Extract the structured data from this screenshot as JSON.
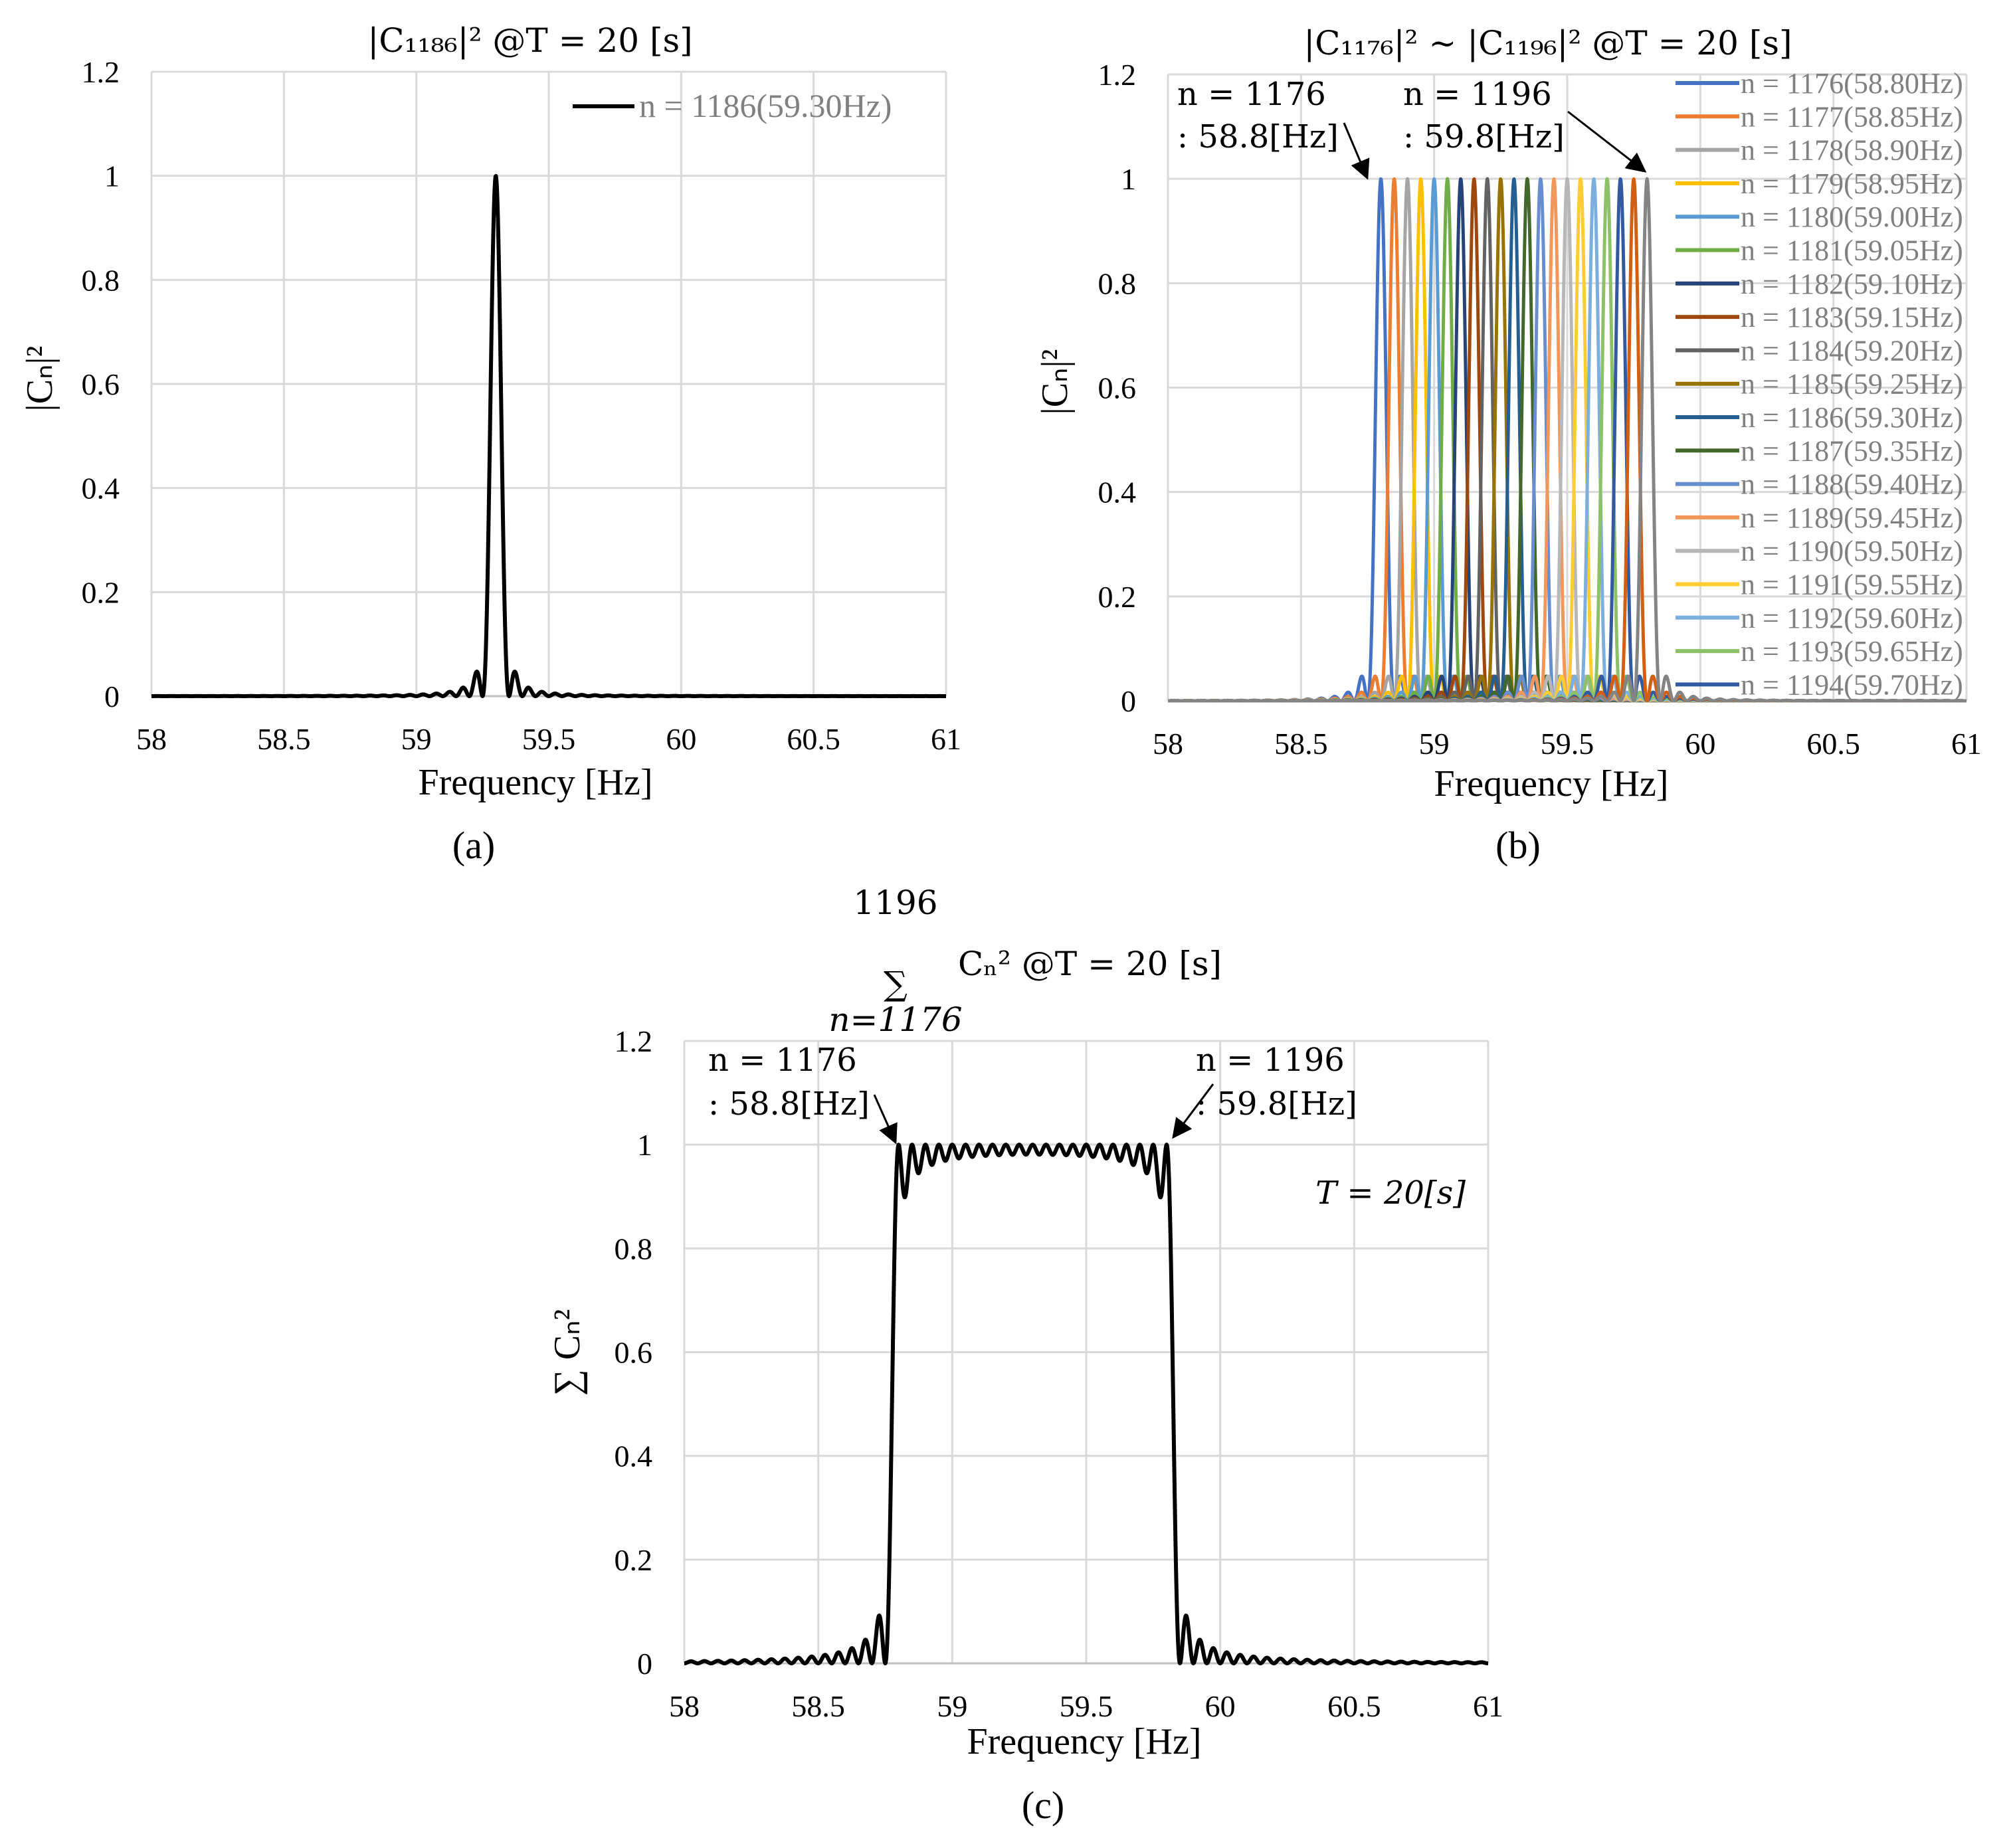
{
  "chart_data": [
    {
      "id": "a",
      "type": "line",
      "title": "|C₁₁₈₆|² @T = 20 [s]",
      "xlabel": "Frequency  [Hz]",
      "ylabel": "|Cₙ|²",
      "xlim": [
        58,
        61
      ],
      "ylim": [
        0,
        1.2
      ],
      "xticks": [
        "58",
        "58.5",
        "59",
        "59.5",
        "60",
        "60.5",
        "61"
      ],
      "yticks": [
        "0",
        "0.2",
        "0.4",
        "0.6",
        "0.8",
        "1",
        "1.2"
      ],
      "caption": "(a)",
      "series": [
        {
          "name": "n = 1186(59.30Hz)",
          "n": 1186,
          "center_hz": 59.3,
          "peak": 1.0,
          "color": "#000000"
        }
      ]
    },
    {
      "id": "b",
      "type": "line",
      "title": "|C₁₁₇₆|² ~ |C₁₁₉₆|² @T = 20 [s]",
      "xlabel": "Frequency  [Hz]",
      "ylabel": "|Cₙ|²",
      "xlim": [
        58,
        61
      ],
      "ylim": [
        0,
        1.2
      ],
      "xticks": [
        "58",
        "58.5",
        "59",
        "59.5",
        "60",
        "60.5",
        "61"
      ],
      "yticks": [
        "0",
        "0.2",
        "0.4",
        "0.6",
        "0.8",
        "1",
        "1.2"
      ],
      "caption": "(b)",
      "annotations": [
        {
          "line1": "n = 1176",
          "line2": ": 58.8[Hz]",
          "target_hz": 58.8,
          "target_y": 1.0
        },
        {
          "line1": "n = 1196",
          "line2": ": 59.8[Hz]",
          "target_hz": 59.8,
          "target_y": 1.0
        }
      ],
      "series": [
        {
          "name": "n = 1176(58.80Hz)",
          "center_hz": 58.8,
          "peak": 1.0,
          "color": "#4472c4"
        },
        {
          "name": "n = 1177(58.85Hz)",
          "center_hz": 58.85,
          "peak": 1.0,
          "color": "#ed7d31"
        },
        {
          "name": "n = 1178(58.90Hz)",
          "center_hz": 58.9,
          "peak": 1.0,
          "color": "#a5a5a5"
        },
        {
          "name": "n = 1179(58.95Hz)",
          "center_hz": 58.95,
          "peak": 1.0,
          "color": "#ffc000"
        },
        {
          "name": "n = 1180(59.00Hz)",
          "center_hz": 59.0,
          "peak": 1.0,
          "color": "#5b9bd5"
        },
        {
          "name": "n = 1181(59.05Hz)",
          "center_hz": 59.05,
          "peak": 1.0,
          "color": "#70ad47"
        },
        {
          "name": "n = 1182(59.10Hz)",
          "center_hz": 59.1,
          "peak": 1.0,
          "color": "#264478"
        },
        {
          "name": "n = 1183(59.15Hz)",
          "center_hz": 59.15,
          "peak": 1.0,
          "color": "#9e480e"
        },
        {
          "name": "n = 1184(59.20Hz)",
          "center_hz": 59.2,
          "peak": 1.0,
          "color": "#636363"
        },
        {
          "name": "n = 1185(59.25Hz)",
          "center_hz": 59.25,
          "peak": 1.0,
          "color": "#997300"
        },
        {
          "name": "n = 1186(59.30Hz)",
          "center_hz": 59.3,
          "peak": 1.0,
          "color": "#255e91"
        },
        {
          "name": "n = 1187(59.35Hz)",
          "center_hz": 59.35,
          "peak": 1.0,
          "color": "#43682b"
        },
        {
          "name": "n = 1188(59.40Hz)",
          "center_hz": 59.4,
          "peak": 1.0,
          "color": "#698ed0"
        },
        {
          "name": "n = 1189(59.45Hz)",
          "center_hz": 59.45,
          "peak": 1.0,
          "color": "#f1975a"
        },
        {
          "name": "n = 1190(59.50Hz)",
          "center_hz": 59.5,
          "peak": 1.0,
          "color": "#b7b7b7"
        },
        {
          "name": "n = 1191(59.55Hz)",
          "center_hz": 59.55,
          "peak": 1.0,
          "color": "#ffcd33"
        },
        {
          "name": "n = 1192(59.60Hz)",
          "center_hz": 59.6,
          "peak": 1.0,
          "color": "#7cafdd"
        },
        {
          "name": "n = 1193(59.65Hz)",
          "center_hz": 59.65,
          "peak": 1.0,
          "color": "#8cc168"
        },
        {
          "name": "n = 1194(59.70Hz)",
          "center_hz": 59.7,
          "peak": 1.0,
          "color": "#335aa1"
        },
        {
          "name": "n = 1195(59.75Hz)",
          "center_hz": 59.75,
          "peak": 1.0,
          "color": "#d26012",
          "in_legend": false
        },
        {
          "name": "n = 1196(59.80Hz)",
          "center_hz": 59.8,
          "peak": 1.0,
          "color": "#848484",
          "in_legend": false
        }
      ]
    },
    {
      "id": "c",
      "type": "line",
      "title_sum_upper": "1196",
      "title_sum_lower": "n=1176",
      "title_sum_symbol": "∑",
      "title_rest": "Cₙ²  @T = 20 [s]",
      "xlabel": "Frequency  [Hz]",
      "ylabel": "∑ Cₙ²",
      "xlim": [
        58,
        61
      ],
      "ylim": [
        0,
        1.2
      ],
      "xticks": [
        "58",
        "58.5",
        "59",
        "59.5",
        "60",
        "60.5",
        "61"
      ],
      "yticks": [
        "0",
        "0.2",
        "0.4",
        "0.6",
        "0.8",
        "1",
        "1.2"
      ],
      "caption": "(c)",
      "inner_label": "T = 20[s]",
      "annotations": [
        {
          "line1": "n = 1176",
          "line2": ": 58.8[Hz]",
          "target_hz": 58.8,
          "target_y": 1.0
        },
        {
          "line1": "n = 1196",
          "line2": ": 59.8[Hz]",
          "target_hz": 59.8,
          "target_y": 1.0
        }
      ],
      "series": [
        {
          "name": "sum n=1176..1196",
          "band_hz": [
            58.8,
            59.8
          ],
          "passband_value": 1.0,
          "color": "#000000"
        }
      ]
    }
  ]
}
